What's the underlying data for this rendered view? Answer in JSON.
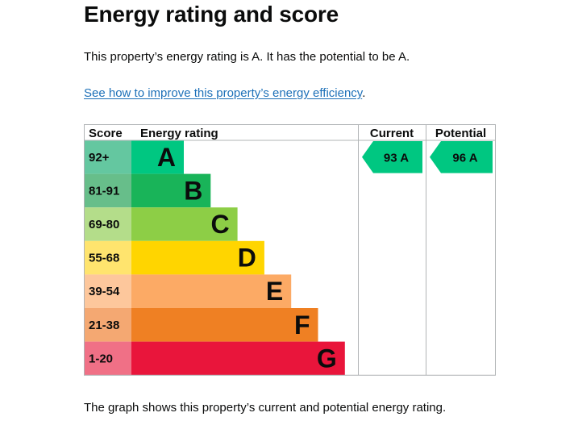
{
  "heading": "Energy rating and score",
  "summary": "This property’s energy rating is A. It has the potential to be A.",
  "link": {
    "text": "See how to improve this property’s energy efficiency",
    "suffix": "."
  },
  "footer": "The graph shows this property’s current and potential energy rating.",
  "chart_data": {
    "type": "table",
    "headers": {
      "score": "Score",
      "rating": "Energy rating",
      "current": "Current",
      "potential": "Potential"
    },
    "bands": [
      {
        "score": "92+",
        "letter": "A",
        "color": "#00c781",
        "score_bg": "#64c7a0"
      },
      {
        "score": "81-91",
        "letter": "B",
        "color": "#19b459",
        "score_bg": "#67be8a"
      },
      {
        "score": "69-80",
        "letter": "C",
        "color": "#8dce46",
        "score_bg": "#b4dd8a"
      },
      {
        "score": "55-68",
        "letter": "D",
        "color": "#ffd500",
        "score_bg": "#ffe46e"
      },
      {
        "score": "39-54",
        "letter": "E",
        "color": "#fcaa65",
        "score_bg": "#fdc79c"
      },
      {
        "score": "21-38",
        "letter": "F",
        "color": "#ef8023",
        "score_bg": "#f4a872"
      },
      {
        "score": "1-20",
        "letter": "G",
        "color": "#e9153b",
        "score_bg": "#f07086"
      }
    ],
    "current": {
      "value": 93,
      "band": "A",
      "label": "93  A",
      "color": "#00c781"
    },
    "potential": {
      "value": 96,
      "band": "A",
      "label": "96  A",
      "color": "#00c781"
    }
  }
}
